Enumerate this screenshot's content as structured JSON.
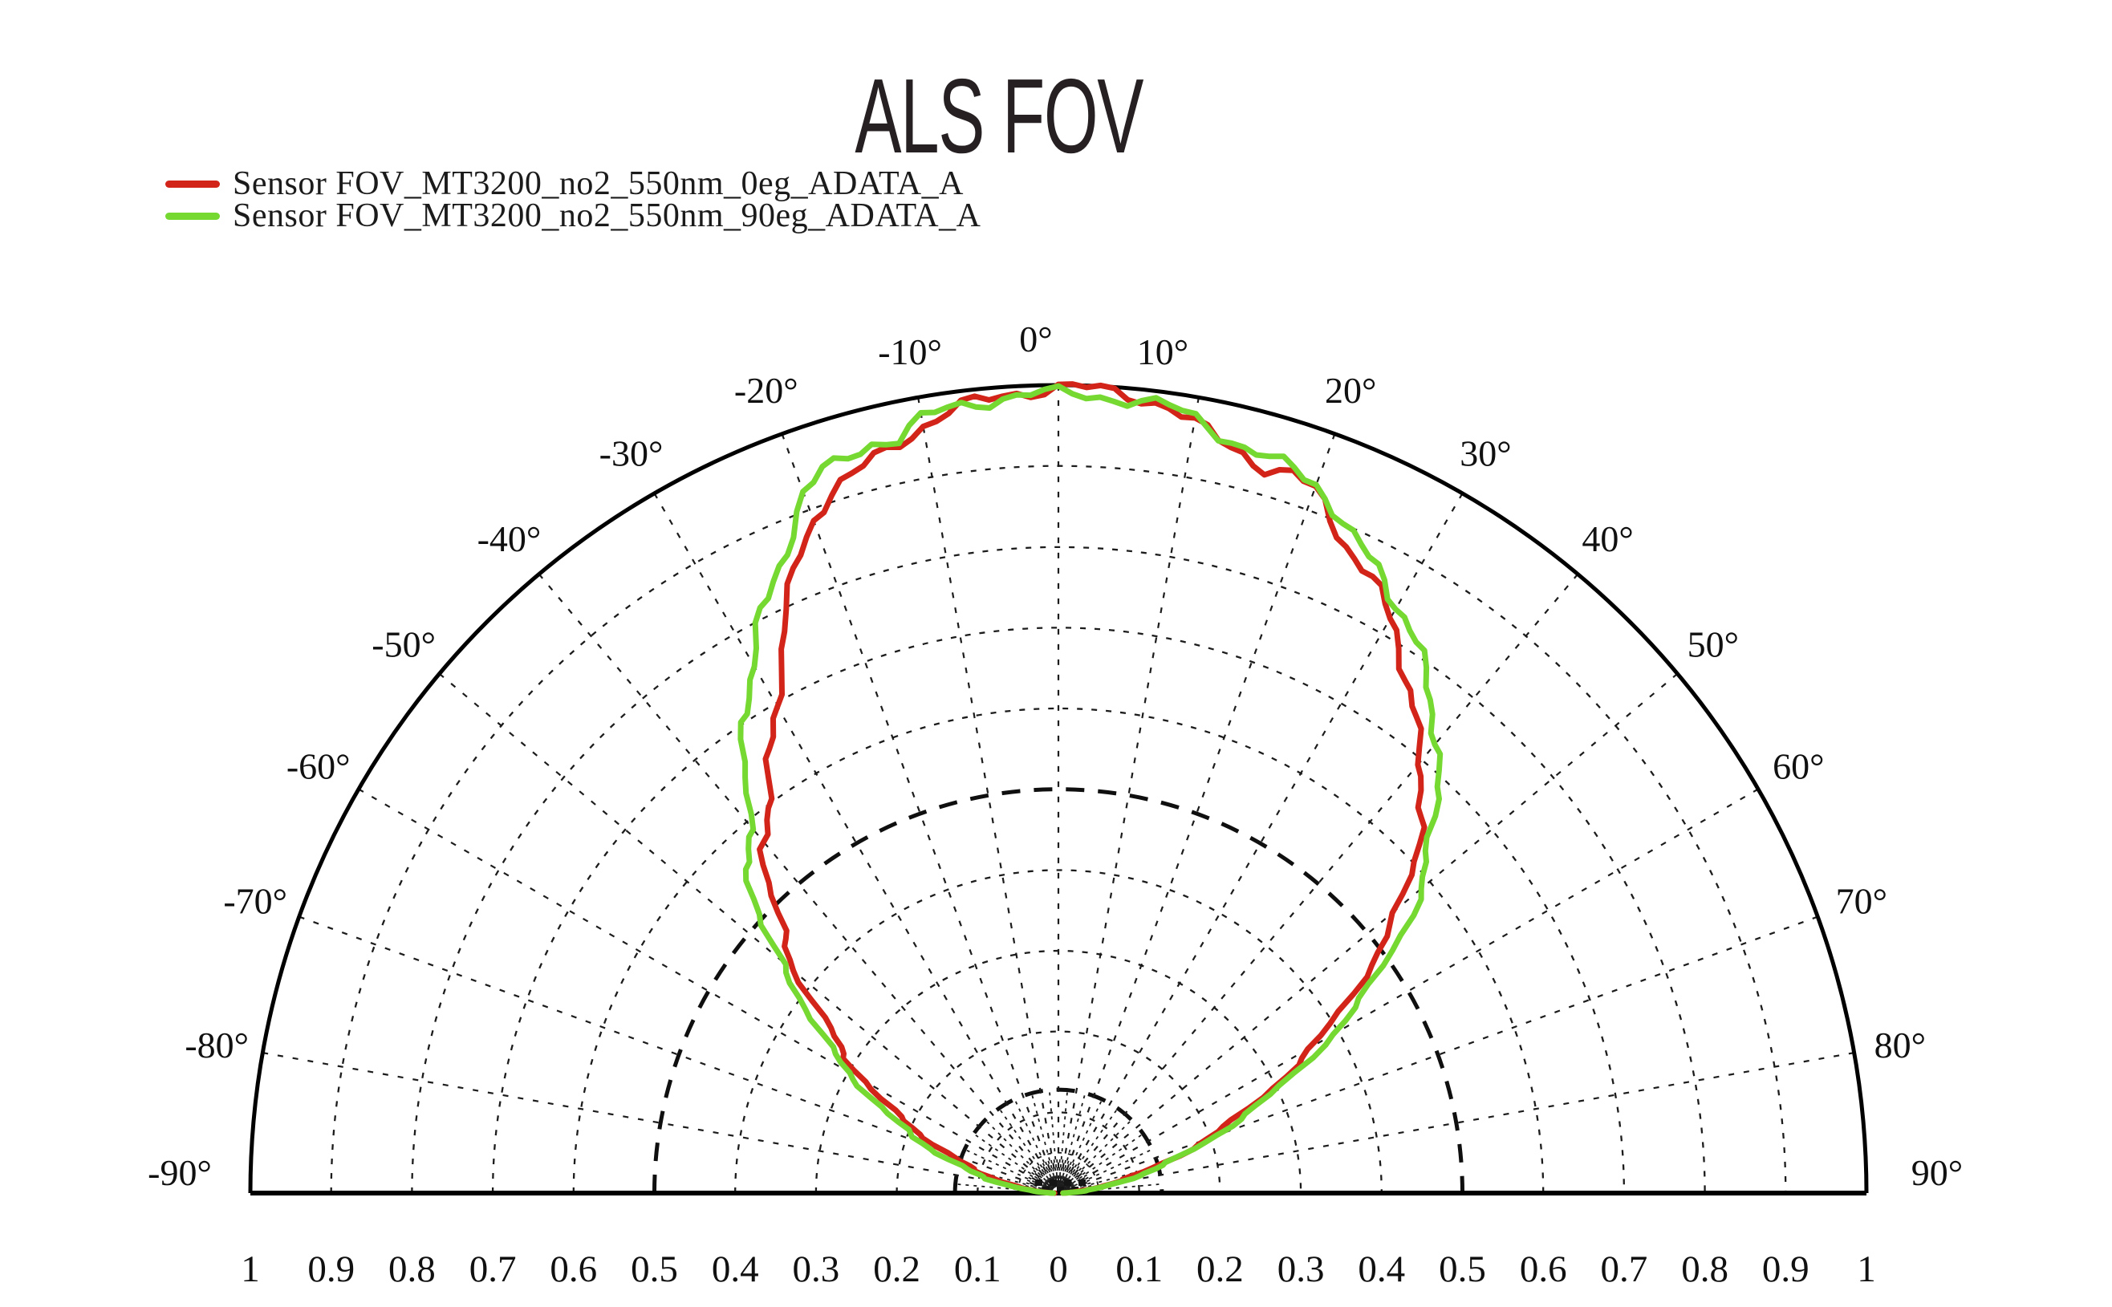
{
  "title": "ALS FOV",
  "legend": {
    "items": [
      {
        "label": "Sensor FOV_MT3200_no2_550nm_0eg_ADATA_A",
        "color": "#d22418"
      },
      {
        "label": "Sensor FOV_MT3200_no2_550nm_90eg_ADATA_A",
        "color": "#75d931"
      }
    ]
  },
  "colors": {
    "background": "#ffffff",
    "grid": "#1c1c1c",
    "text": "#101010",
    "series_red": "#d22418",
    "series_green": "#75d931"
  },
  "chart_data": {
    "type": "line",
    "subtype": "polar-half",
    "title": "ALS FOV",
    "angle_unit": "deg",
    "angle_range": [
      -90,
      90
    ],
    "rlim": [
      0,
      1
    ],
    "grid_on": true,
    "legend_position": "top-left",
    "r_gridlines": [
      0.1,
      0.2,
      0.3,
      0.4,
      0.6,
      0.7,
      0.8,
      0.9
    ],
    "r_gridlines_bold": [
      0.128,
      0.5
    ],
    "r_gridline_minor": 0.05,
    "spoke_step_deg": 10,
    "angle_ticks": [
      {
        "deg": -90,
        "label": "-90°"
      },
      {
        "deg": -80,
        "label": "-80°"
      },
      {
        "deg": -70,
        "label": "-70°"
      },
      {
        "deg": -60,
        "label": "-60°"
      },
      {
        "deg": -50,
        "label": "-50°"
      },
      {
        "deg": -40,
        "label": "-40°"
      },
      {
        "deg": -30,
        "label": "-30°"
      },
      {
        "deg": -20,
        "label": "-20°"
      },
      {
        "deg": -10,
        "label": "-10°"
      },
      {
        "deg": 0,
        "label": "0°"
      },
      {
        "deg": 10,
        "label": "10°"
      },
      {
        "deg": 20,
        "label": "20°"
      },
      {
        "deg": 30,
        "label": "30°"
      },
      {
        "deg": 40,
        "label": "40°"
      },
      {
        "deg": 50,
        "label": "50°"
      },
      {
        "deg": 60,
        "label": "60°"
      },
      {
        "deg": 70,
        "label": "70°"
      },
      {
        "deg": 80,
        "label": "80°"
      },
      {
        "deg": 90,
        "label": "90°"
      }
    ],
    "r_axis_labels": [
      "1",
      "0.9",
      "0.8",
      "0.7",
      "0.6",
      "0.5",
      "0.4",
      "0.3",
      "0.2",
      "0.1",
      "0",
      "0.1",
      "0.2",
      "0.3",
      "0.4",
      "0.5",
      "0.6",
      "0.7",
      "0.8",
      "0.9",
      "1"
    ],
    "series": [
      {
        "name": "Sensor FOV_MT3200_no2_550nm_0eg_ADATA_A",
        "color": "#d22418",
        "points": [
          [
            -90,
            0.005
          ],
          [
            -88,
            0.012
          ],
          [
            -86,
            0.022
          ],
          [
            -84,
            0.032
          ],
          [
            -82,
            0.046
          ],
          [
            -80,
            0.062
          ],
          [
            -78,
            0.075
          ],
          [
            -76,
            0.092
          ],
          [
            -74,
            0.112
          ],
          [
            -72,
            0.13
          ],
          [
            -70,
            0.15
          ],
          [
            -68,
            0.172
          ],
          [
            -66,
            0.196
          ],
          [
            -64,
            0.222
          ],
          [
            -62,
            0.25
          ],
          [
            -60,
            0.275
          ],
          [
            -58,
            0.305
          ],
          [
            -56,
            0.33
          ],
          [
            -54,
            0.352
          ],
          [
            -52,
            0.385
          ],
          [
            -50,
            0.425
          ],
          [
            -48,
            0.452
          ],
          [
            -46,
            0.478
          ],
          [
            -44,
            0.51
          ],
          [
            -42,
            0.542
          ],
          [
            -40,
            0.565
          ],
          [
            -38,
            0.588
          ],
          [
            -36,
            0.612
          ],
          [
            -34,
            0.64
          ],
          [
            -32,
            0.664
          ],
          [
            -30,
            0.696
          ],
          [
            -28,
            0.735
          ],
          [
            -26,
            0.775
          ],
          [
            -24,
            0.815
          ],
          [
            -22,
            0.855
          ],
          [
            -20,
            0.888
          ],
          [
            -18,
            0.912
          ],
          [
            -16,
            0.922
          ],
          [
            -14,
            0.938
          ],
          [
            -12,
            0.952
          ],
          [
            -10,
            0.964
          ],
          [
            -8,
            0.975
          ],
          [
            -6,
            0.984
          ],
          [
            -4,
            0.99
          ],
          [
            -2,
            0.994
          ],
          [
            0,
            0.997
          ],
          [
            2,
            0.996
          ],
          [
            4,
            0.993
          ],
          [
            6,
            0.99
          ],
          [
            8,
            0.984
          ],
          [
            10,
            0.967
          ],
          [
            12,
            0.952
          ],
          [
            14,
            0.944
          ],
          [
            16,
            0.934
          ],
          [
            18,
            0.936
          ],
          [
            20,
            0.925
          ],
          [
            22,
            0.9
          ],
          [
            24,
            0.878
          ],
          [
            26,
            0.862
          ],
          [
            28,
            0.842
          ],
          [
            30,
            0.821
          ],
          [
            32,
            0.8
          ],
          [
            34,
            0.768
          ],
          [
            36,
            0.744
          ],
          [
            38,
            0.72
          ],
          [
            40,
            0.699
          ],
          [
            42,
            0.674
          ],
          [
            44,
            0.645
          ],
          [
            46,
            0.617
          ],
          [
            48,
            0.585
          ],
          [
            50,
            0.55
          ],
          [
            52,
            0.514
          ],
          [
            54,
            0.476
          ],
          [
            56,
            0.437
          ],
          [
            58,
            0.4
          ],
          [
            60,
            0.364
          ],
          [
            62,
            0.329
          ],
          [
            64,
            0.293
          ],
          [
            66,
            0.257
          ],
          [
            68,
            0.226
          ],
          [
            70,
            0.196
          ],
          [
            72,
            0.166
          ],
          [
            74,
            0.137
          ],
          [
            76,
            0.11
          ],
          [
            78,
            0.086
          ],
          [
            80,
            0.065
          ],
          [
            82,
            0.048
          ],
          [
            84,
            0.033
          ],
          [
            86,
            0.021
          ],
          [
            88,
            0.011
          ],
          [
            90,
            0.005
          ]
        ]
      },
      {
        "name": "Sensor FOV_MT3200_no2_550nm_90eg_ADATA_A",
        "color": "#75d931",
        "points": [
          [
            -90,
            0.006
          ],
          [
            -88,
            0.014
          ],
          [
            -86,
            0.026
          ],
          [
            -84,
            0.04
          ],
          [
            -82,
            0.056
          ],
          [
            -80,
            0.074
          ],
          [
            -78,
            0.092
          ],
          [
            -76,
            0.112
          ],
          [
            -74,
            0.133
          ],
          [
            -72,
            0.154
          ],
          [
            -70,
            0.175
          ],
          [
            -68,
            0.198
          ],
          [
            -66,
            0.222
          ],
          [
            -64,
            0.247
          ],
          [
            -62,
            0.272
          ],
          [
            -60,
            0.3
          ],
          [
            -58,
            0.328
          ],
          [
            -56,
            0.356
          ],
          [
            -54,
            0.384
          ],
          [
            -52,
            0.414
          ],
          [
            -50,
            0.448
          ],
          [
            -48,
            0.497
          ],
          [
            -46,
            0.525
          ],
          [
            -44,
            0.55
          ],
          [
            -42,
            0.572
          ],
          [
            -40,
            0.597
          ],
          [
            -38,
            0.625
          ],
          [
            -36,
            0.658
          ],
          [
            -34,
            0.697
          ],
          [
            -32,
            0.728
          ],
          [
            -30,
            0.758
          ],
          [
            -28,
            0.792
          ],
          [
            -26,
            0.818
          ],
          [
            -24,
            0.848
          ],
          [
            -22,
            0.884
          ],
          [
            -20,
            0.922
          ],
          [
            -18,
            0.938
          ],
          [
            -16,
            0.948
          ],
          [
            -14,
            0.957
          ],
          [
            -12,
            0.955
          ],
          [
            -10,
            0.972
          ],
          [
            -8,
            0.98
          ],
          [
            -6,
            0.984
          ],
          [
            -4,
            0.987
          ],
          [
            -2,
            0.989
          ],
          [
            0,
            0.989
          ],
          [
            2,
            0.989
          ],
          [
            4,
            0.987
          ],
          [
            6,
            0.985
          ],
          [
            8,
            0.982
          ],
          [
            10,
            0.974
          ],
          [
            12,
            0.962
          ],
          [
            14,
            0.951
          ],
          [
            16,
            0.945
          ],
          [
            18,
            0.941
          ],
          [
            20,
            0.934
          ],
          [
            22,
            0.914
          ],
          [
            24,
            0.891
          ],
          [
            26,
            0.874
          ],
          [
            28,
            0.859
          ],
          [
            30,
            0.84
          ],
          [
            32,
            0.824
          ],
          [
            34,
            0.8
          ],
          [
            36,
            0.776
          ],
          [
            38,
            0.754
          ],
          [
            40,
            0.73
          ],
          [
            42,
            0.7
          ],
          [
            44,
            0.671
          ],
          [
            46,
            0.641
          ],
          [
            48,
            0.614
          ],
          [
            50,
            0.588
          ],
          [
            52,
            0.55
          ],
          [
            54,
            0.511
          ],
          [
            56,
            0.471
          ],
          [
            58,
            0.431
          ],
          [
            60,
            0.391
          ],
          [
            62,
            0.351
          ],
          [
            64,
            0.311
          ],
          [
            66,
            0.272
          ],
          [
            68,
            0.238
          ],
          [
            70,
            0.206
          ],
          [
            72,
            0.175
          ],
          [
            74,
            0.147
          ],
          [
            76,
            0.121
          ],
          [
            78,
            0.097
          ],
          [
            80,
            0.076
          ],
          [
            82,
            0.057
          ],
          [
            84,
            0.04
          ],
          [
            86,
            0.026
          ],
          [
            88,
            0.013
          ],
          [
            90,
            0.006
          ]
        ]
      }
    ]
  }
}
